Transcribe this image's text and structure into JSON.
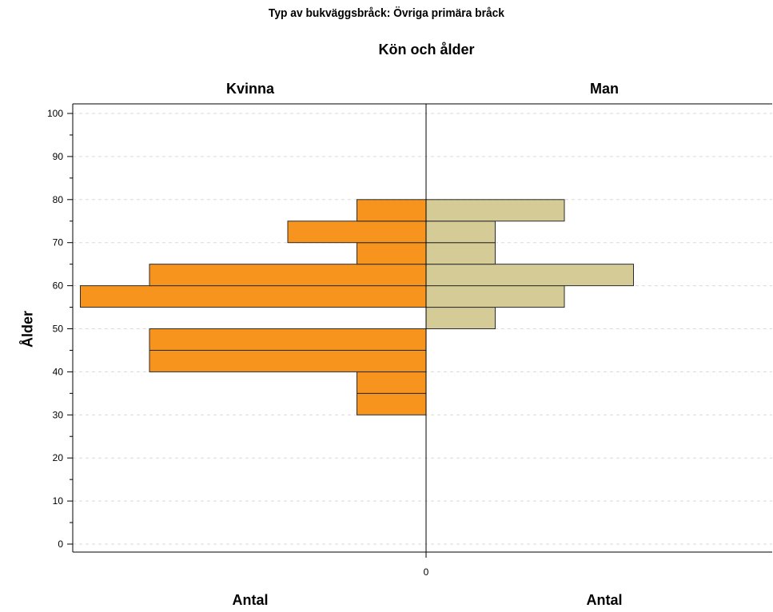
{
  "chart_data": {
    "type": "bar",
    "orientation": "horizontal",
    "title": "Typ av bukväggsbråck: Övriga primära bråck",
    "subtitle": "Kön och ålder",
    "ylabel": "Ålder",
    "xlabel": "Antal",
    "ylim": [
      0,
      100
    ],
    "yticks": [
      "0",
      "10",
      "20",
      "30",
      "40",
      "50",
      "60",
      "70",
      "80",
      "90",
      "100"
    ],
    "xtick_center": "0",
    "grid": true,
    "bin_width": 5,
    "series": [
      {
        "name": "Kvinna",
        "side": "left",
        "color": "#F7941E",
        "bins": [
          {
            "from": 30,
            "to": 35,
            "count": 1
          },
          {
            "from": 35,
            "to": 40,
            "count": 1
          },
          {
            "from": 40,
            "to": 45,
            "count": 4
          },
          {
            "from": 45,
            "to": 50,
            "count": 4
          },
          {
            "from": 55,
            "to": 60,
            "count": 5
          },
          {
            "from": 60,
            "to": 65,
            "count": 4
          },
          {
            "from": 65,
            "to": 70,
            "count": 1
          },
          {
            "from": 70,
            "to": 75,
            "count": 2
          },
          {
            "from": 75,
            "to": 80,
            "count": 1
          }
        ]
      },
      {
        "name": "Man",
        "side": "right",
        "color": "#D4CB96",
        "bins": [
          {
            "from": 50,
            "to": 55,
            "count": 1
          },
          {
            "from": 55,
            "to": 60,
            "count": 2
          },
          {
            "from": 60,
            "to": 65,
            "count": 3
          },
          {
            "from": 65,
            "to": 70,
            "count": 1
          },
          {
            "from": 70,
            "to": 75,
            "count": 1
          },
          {
            "from": 75,
            "to": 80,
            "count": 2
          }
        ]
      }
    ]
  }
}
